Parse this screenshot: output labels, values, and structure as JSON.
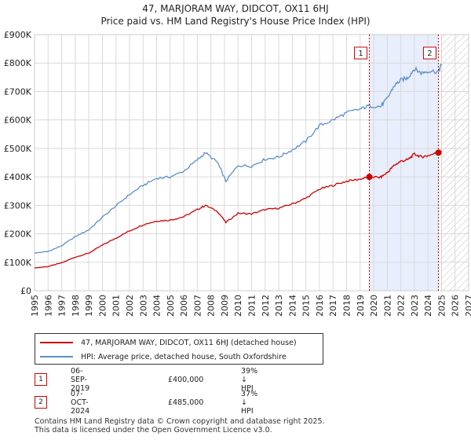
{
  "chart_data": {
    "type": "line",
    "title": "47, MARJORAM WAY, DIDCOT, OX11 6HJ",
    "subtitle": "Price paid vs. HM Land Registry's House Price Index (HPI)",
    "xlim": [
      1995,
      2027
    ],
    "ylim": [
      0,
      900000
    ],
    "x_ticks": [
      "1995",
      "1996",
      "1997",
      "1998",
      "1999",
      "2000",
      "2001",
      "2002",
      "2003",
      "2004",
      "2005",
      "2006",
      "2007",
      "2008",
      "2009",
      "2010",
      "2011",
      "2012",
      "2013",
      "2014",
      "2015",
      "2016",
      "2017",
      "2018",
      "2019",
      "2020",
      "2021",
      "2022",
      "2023",
      "2024",
      "2025",
      "2026",
      "2027"
    ],
    "y_ticks": [
      {
        "v": 0,
        "label": "£0"
      },
      {
        "v": 100000,
        "label": "£100K"
      },
      {
        "v": 200000,
        "label": "£200K"
      },
      {
        "v": 300000,
        "label": "£300K"
      },
      {
        "v": 400000,
        "label": "£400K"
      },
      {
        "v": 500000,
        "label": "£500K"
      },
      {
        "v": 600000,
        "label": "£600K"
      },
      {
        "v": 700000,
        "label": "£700K"
      },
      {
        "v": 800000,
        "label": "£800K"
      },
      {
        "v": 900000,
        "label": "£900K"
      }
    ],
    "series": [
      {
        "name": "47, MARJORAM WAY, DIDCOT, OX11 6HJ (detached house)",
        "color": "#cc0000",
        "x": [
          1995.0,
          1996.0,
          1997.0,
          1998.0,
          1999.0,
          2000.0,
          2001.0,
          2002.0,
          2003.0,
          2004.0,
          2005.0,
          2006.0,
          2007.0,
          2007.6,
          2008.5,
          2009.1,
          2010.0,
          2011.0,
          2012.0,
          2013.0,
          2014.0,
          2015.0,
          2016.0,
          2017.0,
          2018.0,
          2019.0,
          2019.68,
          2020.5,
          2021.0,
          2021.5,
          2022.0,
          2022.5,
          2023.0,
          2023.5,
          2024.0,
          2024.77,
          2025.0
        ],
        "y": [
          80000,
          85000,
          98000,
          118000,
          132000,
          160000,
          185000,
          210000,
          232000,
          245000,
          248000,
          260000,
          285000,
          300000,
          278000,
          240000,
          272000,
          270000,
          285000,
          290000,
          305000,
          325000,
          357000,
          370000,
          385000,
          392000,
          400000,
          398000,
          415000,
          440000,
          455000,
          460000,
          480000,
          470000,
          475000,
          485000,
          490000
        ]
      },
      {
        "name": "HPI: Average price, detached house, South Oxfordshire",
        "color": "#5b8fc9",
        "x": [
          1995.0,
          1996.0,
          1997.0,
          1998.0,
          1999.0,
          2000.0,
          2001.0,
          2002.0,
          2003.0,
          2004.0,
          2005.0,
          2006.0,
          2007.0,
          2007.6,
          2008.5,
          2009.1,
          2010.0,
          2011.0,
          2012.0,
          2013.0,
          2014.0,
          2015.0,
          2016.0,
          2017.0,
          2018.0,
          2019.0,
          2019.68,
          2020.5,
          2021.0,
          2021.5,
          2022.0,
          2022.5,
          2023.0,
          2023.5,
          2024.0,
          2024.77,
          2025.0
        ],
        "y": [
          132000,
          138000,
          158000,
          190000,
          214000,
          258000,
          298000,
          338000,
          370000,
          395000,
          400000,
          420000,
          460000,
          485000,
          450000,
          385000,
          440000,
          438000,
          462000,
          470000,
          495000,
          525000,
          580000,
          600000,
          625000,
          638000,
          650000,
          647000,
          675000,
          720000,
          740000,
          748000,
          780000,
          765000,
          772000,
          770000,
          795000
        ]
      }
    ],
    "sales": [
      {
        "label": "1",
        "x": 2019.68,
        "y": 400000
      },
      {
        "label": "2",
        "x": 2024.77,
        "y": 485000
      }
    ],
    "highlight": {
      "from": 2019.68,
      "to": 2024.77
    },
    "future_from": 2025.0,
    "colors": {
      "price": "#cc0000",
      "hpi": "#5b8fc9",
      "highlight": "#e8eefb",
      "grid": "#d9d9d9",
      "marker_line": "#cc0000"
    }
  },
  "transactions": [
    {
      "num": "1",
      "date": "06-SEP-2019",
      "price": "£400,000",
      "hpi": "39% ↓ HPI"
    },
    {
      "num": "2",
      "date": "07-OCT-2024",
      "price": "£485,000",
      "hpi": "37% ↓ HPI"
    }
  ],
  "footer": {
    "line1": "Contains HM Land Registry data © Crown copyright and database right 2025.",
    "line2": "This data is licensed under the Open Government Licence v3.0."
  }
}
